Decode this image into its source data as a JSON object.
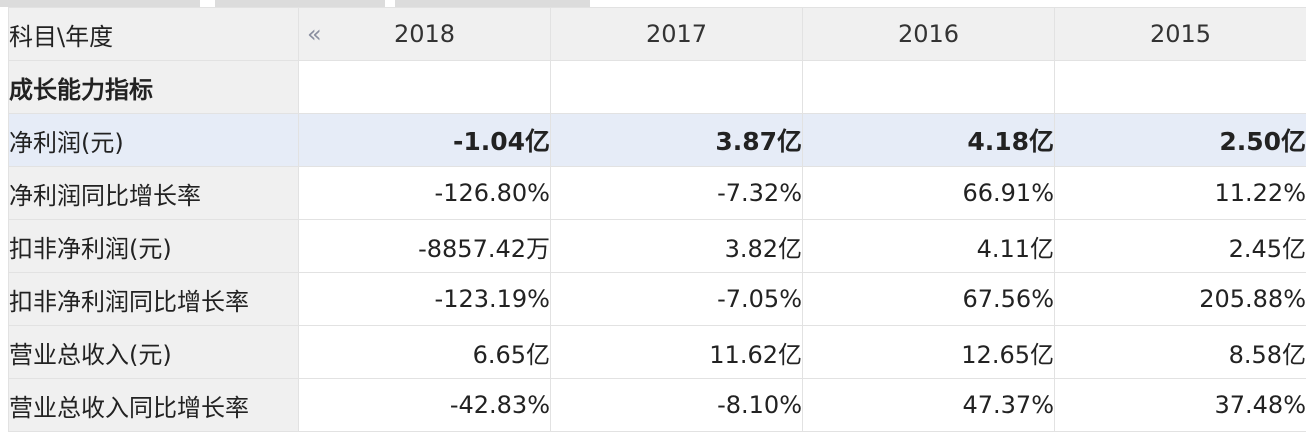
{
  "header": {
    "corner_label": "科目\\年度",
    "prev_icon": "«",
    "years": [
      "2018",
      "2017",
      "2016",
      "2015"
    ]
  },
  "section": {
    "title": "成长能力指标"
  },
  "rows": [
    {
      "label": "净利润(元)",
      "values": [
        "-1.04亿",
        "3.87亿",
        "4.18亿",
        "2.50亿"
      ],
      "highlight": true
    },
    {
      "label": "净利润同比增长率",
      "values": [
        "-126.80%",
        "-7.32%",
        "66.91%",
        "11.22%"
      ]
    },
    {
      "label": "扣非净利润(元)",
      "values": [
        "-8857.42万",
        "3.82亿",
        "4.11亿",
        "2.45亿"
      ]
    },
    {
      "label": "扣非净利润同比增长率",
      "values": [
        "-123.19%",
        "-7.05%",
        "67.56%",
        "205.88%"
      ]
    },
    {
      "label": "营业总收入(元)",
      "values": [
        "6.65亿",
        "11.62亿",
        "12.65亿",
        "8.58亿"
      ]
    },
    {
      "label": "营业总收入同比增长率",
      "values": [
        "-42.83%",
        "-8.10%",
        "47.37%",
        "37.48%"
      ]
    }
  ],
  "colors": {
    "label_bg": "#f0f0f0",
    "highlight_bg": "#e6ecf7",
    "border": "#e2e2e2"
  }
}
